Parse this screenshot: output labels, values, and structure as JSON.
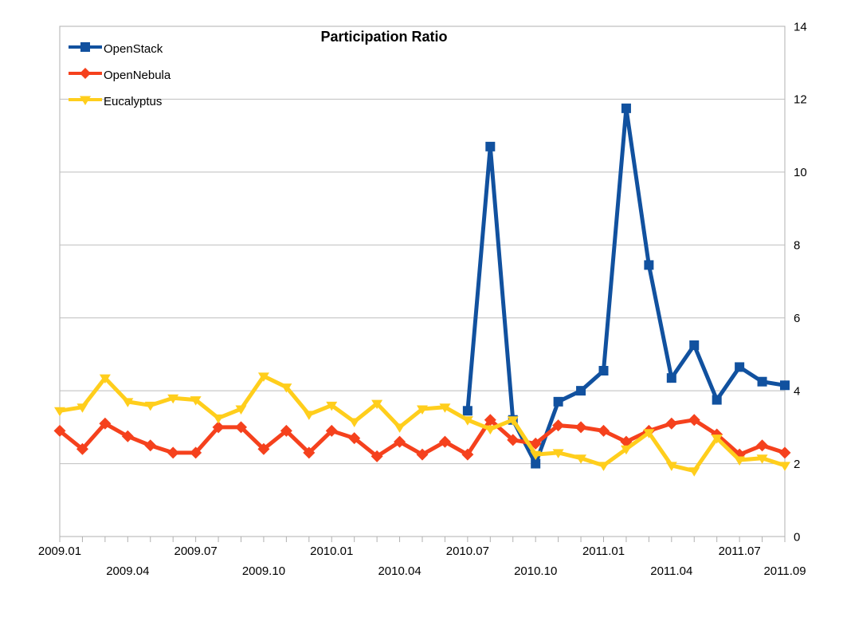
{
  "title": "Participation Ratio",
  "legend": {
    "position": "top-left-inside",
    "items": [
      {
        "label": "OpenStack"
      },
      {
        "label": "OpenNebula"
      },
      {
        "label": "Eucalyptus"
      }
    ]
  },
  "colors": {
    "openstack": "#11519F",
    "opennebula": "#F5411D",
    "eucalyptus": "#FFCE1C",
    "gridline": "#BEBEBE",
    "axis": "#B0B0B0",
    "text": "#000000",
    "background": "#FFFFFF"
  },
  "chart_data": {
    "type": "line",
    "title": "Participation Ratio",
    "x_frequency": "monthly",
    "x_start": "2009.01",
    "x_end": "2011.09",
    "n_points": 33,
    "ylim": [
      0,
      14
    ],
    "y_axis_side": "right",
    "grid": "horizontal",
    "y_tick_labels": [
      "0",
      "2",
      "4",
      "6",
      "8",
      "10",
      "12",
      "14"
    ],
    "x_tick_labels": [
      {
        "label": "2009.01",
        "index": 0,
        "row": 1
      },
      {
        "label": "2009.04",
        "index": 3,
        "row": 2
      },
      {
        "label": "2009.07",
        "index": 6,
        "row": 1
      },
      {
        "label": "2009.10",
        "index": 9,
        "row": 2
      },
      {
        "label": "2010.01",
        "index": 12,
        "row": 1
      },
      {
        "label": "2010.04",
        "index": 15,
        "row": 2
      },
      {
        "label": "2010.07",
        "index": 18,
        "row": 1
      },
      {
        "label": "2010.10",
        "index": 21,
        "row": 2
      },
      {
        "label": "2011.01",
        "index": 24,
        "row": 1
      },
      {
        "label": "2011.04",
        "index": 27,
        "row": 2
      },
      {
        "label": "2011.07",
        "index": 30,
        "row": 1
      },
      {
        "label": "2011.09",
        "index": 32,
        "row": 2
      }
    ],
    "series": [
      {
        "name": "OpenStack",
        "color": "#11519F",
        "marker": "square",
        "values": [
          null,
          null,
          null,
          null,
          null,
          null,
          null,
          null,
          null,
          null,
          null,
          null,
          null,
          null,
          null,
          null,
          null,
          null,
          3.45,
          10.7,
          3.2,
          2.0,
          3.7,
          4.0,
          4.55,
          11.75,
          7.45,
          4.35,
          5.25,
          3.75,
          4.65,
          4.25,
          4.15
        ]
      },
      {
        "name": "OpenNebula",
        "color": "#F5411D",
        "marker": "diamond",
        "values": [
          2.9,
          2.4,
          3.1,
          2.75,
          2.5,
          2.3,
          2.3,
          3.0,
          3.0,
          2.4,
          2.9,
          2.3,
          2.9,
          2.7,
          2.2,
          2.6,
          2.25,
          2.6,
          2.25,
          3.2,
          2.65,
          2.55,
          3.05,
          3.0,
          2.9,
          2.6,
          2.9,
          3.1,
          3.2,
          2.8,
          2.25,
          2.5,
          2.3
        ]
      },
      {
        "name": "Eucalyptus",
        "color": "#FFCE1C",
        "marker": "triangle-down",
        "values": [
          3.45,
          3.55,
          4.35,
          3.7,
          3.6,
          3.8,
          3.75,
          3.25,
          3.5,
          4.4,
          4.1,
          3.35,
          3.6,
          3.15,
          3.65,
          3.0,
          3.5,
          3.55,
          3.2,
          2.95,
          3.2,
          2.25,
          2.3,
          2.15,
          1.95,
          2.4,
          2.85,
          1.95,
          1.8,
          2.7,
          2.1,
          2.15,
          1.95
        ]
      }
    ]
  }
}
